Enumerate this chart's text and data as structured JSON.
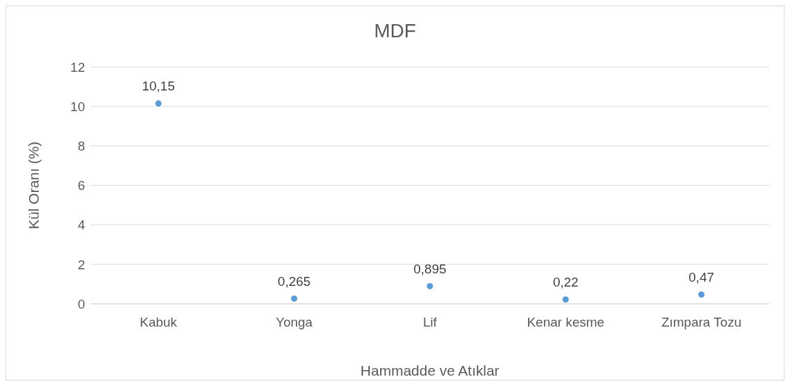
{
  "chart_data": {
    "type": "scatter",
    "title": "MDF",
    "xlabel": "Hammadde ve Atıklar",
    "ylabel": "Kül Oranı (%)",
    "categories": [
      "Kabuk",
      "Yonga",
      "Lif",
      "Kenar kesme",
      "Zımpara Tozu"
    ],
    "values": [
      10.15,
      0.265,
      0.895,
      0.22,
      0.47
    ],
    "value_labels": [
      "10,15",
      "0,265",
      "0,895",
      "0,22",
      "0,47"
    ],
    "color": "#5b9bd5",
    "marker": "circle",
    "ylim": [
      0,
      12
    ],
    "yticks": [
      0,
      2,
      4,
      6,
      8,
      10,
      12
    ],
    "grid": "y"
  }
}
